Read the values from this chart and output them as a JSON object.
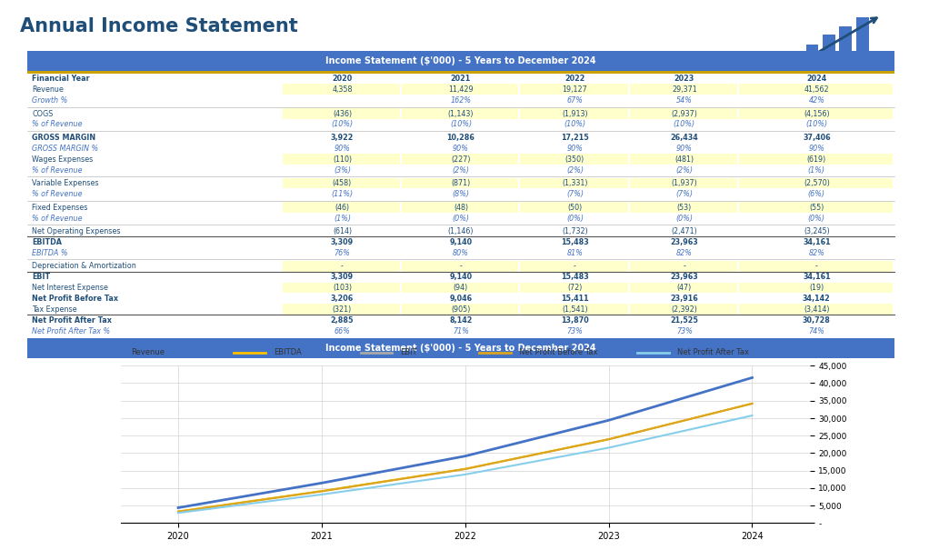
{
  "title": "Annual Income Statement",
  "table_header": "Income Statement ($'000) - 5 Years to December 2024",
  "rows": [
    {
      "label": "Financial Year",
      "bold": true,
      "italic": false,
      "yellow": false,
      "values": [
        "2020",
        "2021",
        "2022",
        "2023",
        "2024"
      ],
      "separator": false,
      "top_border": false
    },
    {
      "label": "Revenue",
      "bold": false,
      "italic": false,
      "yellow": true,
      "values": [
        "4,358",
        "11,429",
        "19,127",
        "29,371",
        "41,562"
      ],
      "separator": false,
      "top_border": false
    },
    {
      "label": "Growth %",
      "bold": false,
      "italic": true,
      "yellow": false,
      "values": [
        "",
        "162%",
        "67%",
        "54%",
        "42%"
      ],
      "separator": false,
      "top_border": false
    },
    {
      "label": "",
      "bold": false,
      "italic": false,
      "yellow": false,
      "values": [
        "",
        "",
        "",
        "",
        ""
      ],
      "separator": true,
      "top_border": false
    },
    {
      "label": "COGS",
      "bold": false,
      "italic": false,
      "yellow": true,
      "values": [
        "(436)",
        "(1,143)",
        "(1,913)",
        "(2,937)",
        "(4,156)"
      ],
      "separator": false,
      "top_border": false
    },
    {
      "label": "% of Revenue",
      "bold": false,
      "italic": true,
      "yellow": false,
      "values": [
        "(10%)",
        "(10%)",
        "(10%)",
        "(10%)",
        "(10%)"
      ],
      "separator": false,
      "top_border": false
    },
    {
      "label": "",
      "bold": false,
      "italic": false,
      "yellow": false,
      "values": [
        "",
        "",
        "",
        "",
        ""
      ],
      "separator": true,
      "top_border": false
    },
    {
      "label": "GROSS MARGIN",
      "bold": true,
      "italic": false,
      "yellow": false,
      "values": [
        "3,922",
        "10,286",
        "17,215",
        "26,434",
        "37,406"
      ],
      "separator": false,
      "top_border": false
    },
    {
      "label": "GROSS MARGIN %",
      "bold": false,
      "italic": true,
      "yellow": false,
      "values": [
        "90%",
        "90%",
        "90%",
        "90%",
        "90%"
      ],
      "separator": false,
      "top_border": false
    },
    {
      "label": "Wages Expenses",
      "bold": false,
      "italic": false,
      "yellow": true,
      "values": [
        "(110)",
        "(227)",
        "(350)",
        "(481)",
        "(619)"
      ],
      "separator": false,
      "top_border": false
    },
    {
      "label": "% of Revenue",
      "bold": false,
      "italic": true,
      "yellow": false,
      "values": [
        "(3%)",
        "(2%)",
        "(2%)",
        "(2%)",
        "(1%)"
      ],
      "separator": false,
      "top_border": false
    },
    {
      "label": "",
      "bold": false,
      "italic": false,
      "yellow": false,
      "values": [
        "",
        "",
        "",
        "",
        ""
      ],
      "separator": true,
      "top_border": false
    },
    {
      "label": "Variable Expenses",
      "bold": false,
      "italic": false,
      "yellow": true,
      "values": [
        "(458)",
        "(871)",
        "(1,331)",
        "(1,937)",
        "(2,570)"
      ],
      "separator": false,
      "top_border": false
    },
    {
      "label": "% of Revenue",
      "bold": false,
      "italic": true,
      "yellow": false,
      "values": [
        "(11%)",
        "(8%)",
        "(7%)",
        "(7%)",
        "(6%)"
      ],
      "separator": false,
      "top_border": false
    },
    {
      "label": "",
      "bold": false,
      "italic": false,
      "yellow": false,
      "values": [
        "",
        "",
        "",
        "",
        ""
      ],
      "separator": true,
      "top_border": false
    },
    {
      "label": "Fixed Expenses",
      "bold": false,
      "italic": false,
      "yellow": true,
      "values": [
        "(46)",
        "(48)",
        "(50)",
        "(53)",
        "(55)"
      ],
      "separator": false,
      "top_border": false
    },
    {
      "label": "% of Revenue",
      "bold": false,
      "italic": true,
      "yellow": false,
      "values": [
        "(1%)",
        "(0%)",
        "(0%)",
        "(0%)",
        "(0%)"
      ],
      "separator": false,
      "top_border": false
    },
    {
      "label": "",
      "bold": false,
      "italic": false,
      "yellow": false,
      "values": [
        "",
        "",
        "",
        "",
        ""
      ],
      "separator": true,
      "top_border": false
    },
    {
      "label": "Net Operating Expenses",
      "bold": false,
      "italic": false,
      "yellow": false,
      "values": [
        "(614)",
        "(1,146)",
        "(1,732)",
        "(2,471)",
        "(3,245)"
      ],
      "separator": false,
      "top_border": false
    },
    {
      "label": "EBITDA",
      "bold": true,
      "italic": false,
      "yellow": false,
      "values": [
        "3,309",
        "9,140",
        "15,483",
        "23,963",
        "34,161"
      ],
      "separator": false,
      "top_border": true
    },
    {
      "label": "EBITDA %",
      "bold": false,
      "italic": true,
      "yellow": false,
      "values": [
        "76%",
        "80%",
        "81%",
        "82%",
        "82%"
      ],
      "separator": false,
      "top_border": false
    },
    {
      "label": "",
      "bold": false,
      "italic": false,
      "yellow": false,
      "values": [
        "",
        "",
        "",
        "",
        ""
      ],
      "separator": true,
      "top_border": false
    },
    {
      "label": "Depreciation & Amortization",
      "bold": false,
      "italic": false,
      "yellow": true,
      "values": [
        "-",
        "-",
        "-",
        "-",
        "-"
      ],
      "separator": false,
      "top_border": false
    },
    {
      "label": "EBIT",
      "bold": true,
      "italic": false,
      "yellow": false,
      "values": [
        "3,309",
        "9,140",
        "15,483",
        "23,963",
        "34,161"
      ],
      "separator": false,
      "top_border": true
    },
    {
      "label": "Net Interest Expense",
      "bold": false,
      "italic": false,
      "yellow": true,
      "values": [
        "(103)",
        "(94)",
        "(72)",
        "(47)",
        "(19)"
      ],
      "separator": false,
      "top_border": false
    },
    {
      "label": "Net Profit Before Tax",
      "bold": true,
      "italic": false,
      "yellow": false,
      "values": [
        "3,206",
        "9,046",
        "15,411",
        "23,916",
        "34,142"
      ],
      "separator": false,
      "top_border": false
    },
    {
      "label": "Tax Expense",
      "bold": false,
      "italic": false,
      "yellow": true,
      "values": [
        "(321)",
        "(905)",
        "(1,541)",
        "(2,392)",
        "(3,414)"
      ],
      "separator": false,
      "top_border": false
    },
    {
      "label": "Net Profit After Tax",
      "bold": true,
      "italic": false,
      "yellow": false,
      "values": [
        "2,885",
        "8,142",
        "13,870",
        "21,525",
        "30,728"
      ],
      "separator": false,
      "top_border": true
    },
    {
      "label": "Net Profit After Tax %",
      "bold": false,
      "italic": true,
      "yellow": false,
      "values": [
        "66%",
        "71%",
        "73%",
        "73%",
        "74%"
      ],
      "separator": false,
      "top_border": false
    }
  ],
  "chart": {
    "years": [
      2020,
      2021,
      2022,
      2023,
      2024
    ],
    "revenue": [
      4358,
      11429,
      19127,
      29371,
      41562
    ],
    "ebitda": [
      3309,
      9140,
      15483,
      23963,
      34161
    ],
    "ebit": [
      3309,
      9140,
      15483,
      23963,
      34161
    ],
    "net_profit_before_tax": [
      3206,
      9046,
      15411,
      23916,
      34142
    ],
    "net_profit_after_tax": [
      2885,
      8142,
      13870,
      21525,
      30728
    ],
    "y_ticks": [
      0,
      5000,
      10000,
      15000,
      20000,
      25000,
      30000,
      35000,
      40000,
      45000
    ],
    "y_tick_labels": [
      "-",
      "5,000",
      "10,000",
      "15,000",
      "20,000",
      "25,000",
      "30,000",
      "35,000",
      "40,000",
      "45,000"
    ]
  },
  "colors": {
    "header_bg": "#4472C4",
    "header_text": "#FFFFFF",
    "title_text": "#1F4E79",
    "label_color": "#1F4E79",
    "bold_color": "#1F4E79",
    "italic_color": "#4472C4",
    "yellow_bg": "#FFFFCC",
    "separator_color": "#AAAAAA",
    "border_color": "#555555",
    "finmodels_color": "#1F4E79",
    "revenue_line": "#4472C4",
    "ebitda_line": "#FFC000",
    "ebit_line": "#A9A9A9",
    "npbt_line": "#DAA520",
    "npat_line": "#87CEEB",
    "grid_color": "#D3D3D3",
    "gold_accent": "#C8A000"
  }
}
